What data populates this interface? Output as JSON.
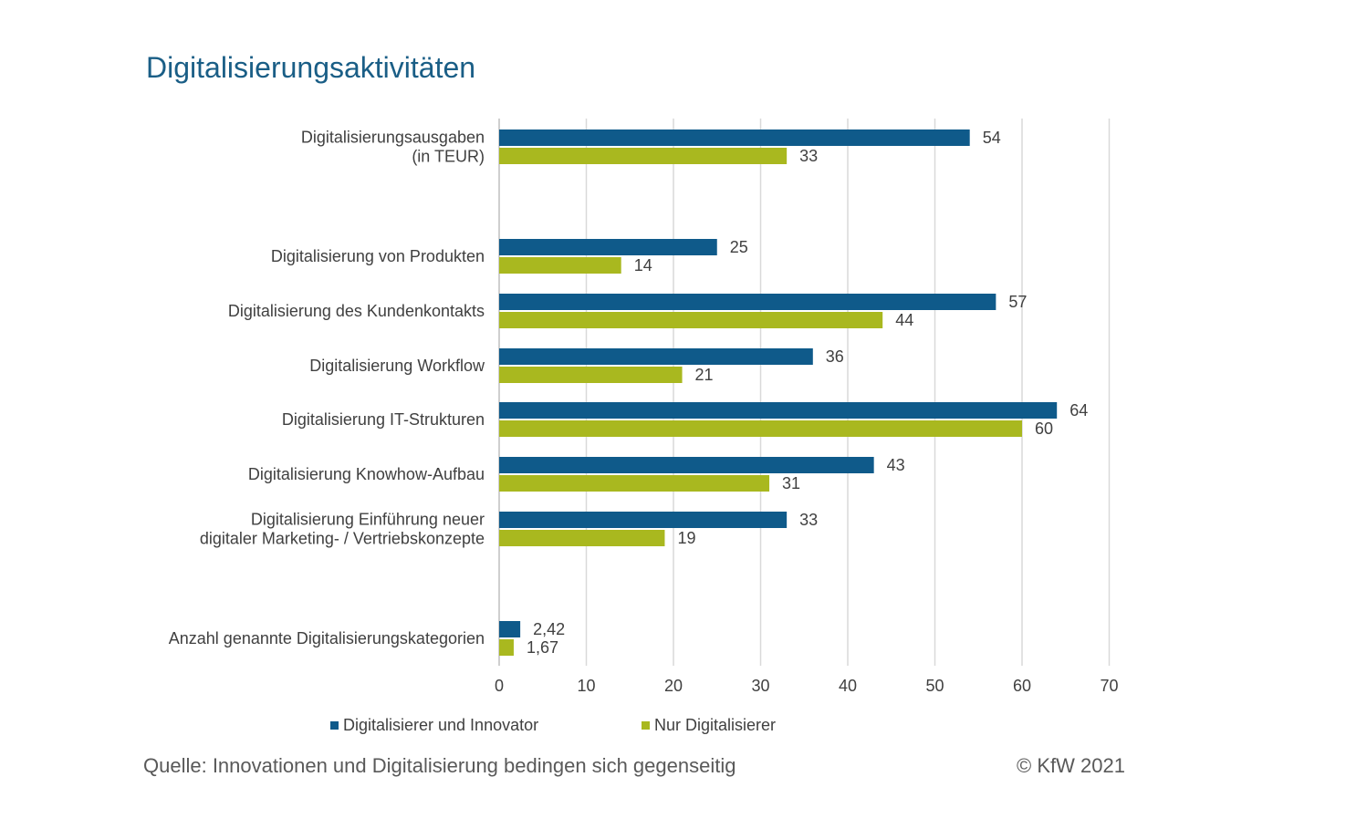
{
  "title": "Digitalisierungsaktivitäten",
  "chart_data": {
    "type": "bar",
    "orientation": "horizontal",
    "title": "Digitalisierungsaktivitäten",
    "categories": [
      [
        "Digitalisierungsausgaben",
        "(in TEUR)"
      ],
      [
        "Digitalisierung von Produkten"
      ],
      [
        "Digitalisierung des Kundenkontakts"
      ],
      [
        "Digitalisierung Workflow"
      ],
      [
        "Digitalisierung IT-Strukturen"
      ],
      [
        "Digitalisierung Knowhow-Aufbau"
      ],
      [
        "Digitalisierung Einführung neuer",
        "digitaler Marketing- / Vertriebskonzepte"
      ],
      [
        "Anzahl genannte Digitalisierungskategorien"
      ]
    ],
    "series": [
      {
        "name": "Digitalisierer und Innovator",
        "color": "#0f5a8a",
        "values": [
          54,
          25,
          57,
          36,
          64,
          43,
          33,
          2.42
        ],
        "labels": [
          "54",
          "25",
          "57",
          "36",
          "64",
          "43",
          "33",
          "2,42"
        ]
      },
      {
        "name": "Nur Digitalisierer",
        "color": "#a9b81f",
        "values": [
          33,
          14,
          44,
          21,
          60,
          31,
          19,
          1.67
        ],
        "labels": [
          "33",
          "14",
          "44",
          "21",
          "60",
          "31",
          "19",
          "1,67"
        ]
      }
    ],
    "xlim": [
      0,
      70
    ],
    "xticks": [
      0,
      10,
      20,
      30,
      40,
      50,
      60,
      70
    ],
    "grid": true,
    "legend_position": "bottom"
  },
  "source": "Quelle: Innovationen und Digitalisierung bedingen sich gegenseitig",
  "copyright": "© KfW 2021"
}
